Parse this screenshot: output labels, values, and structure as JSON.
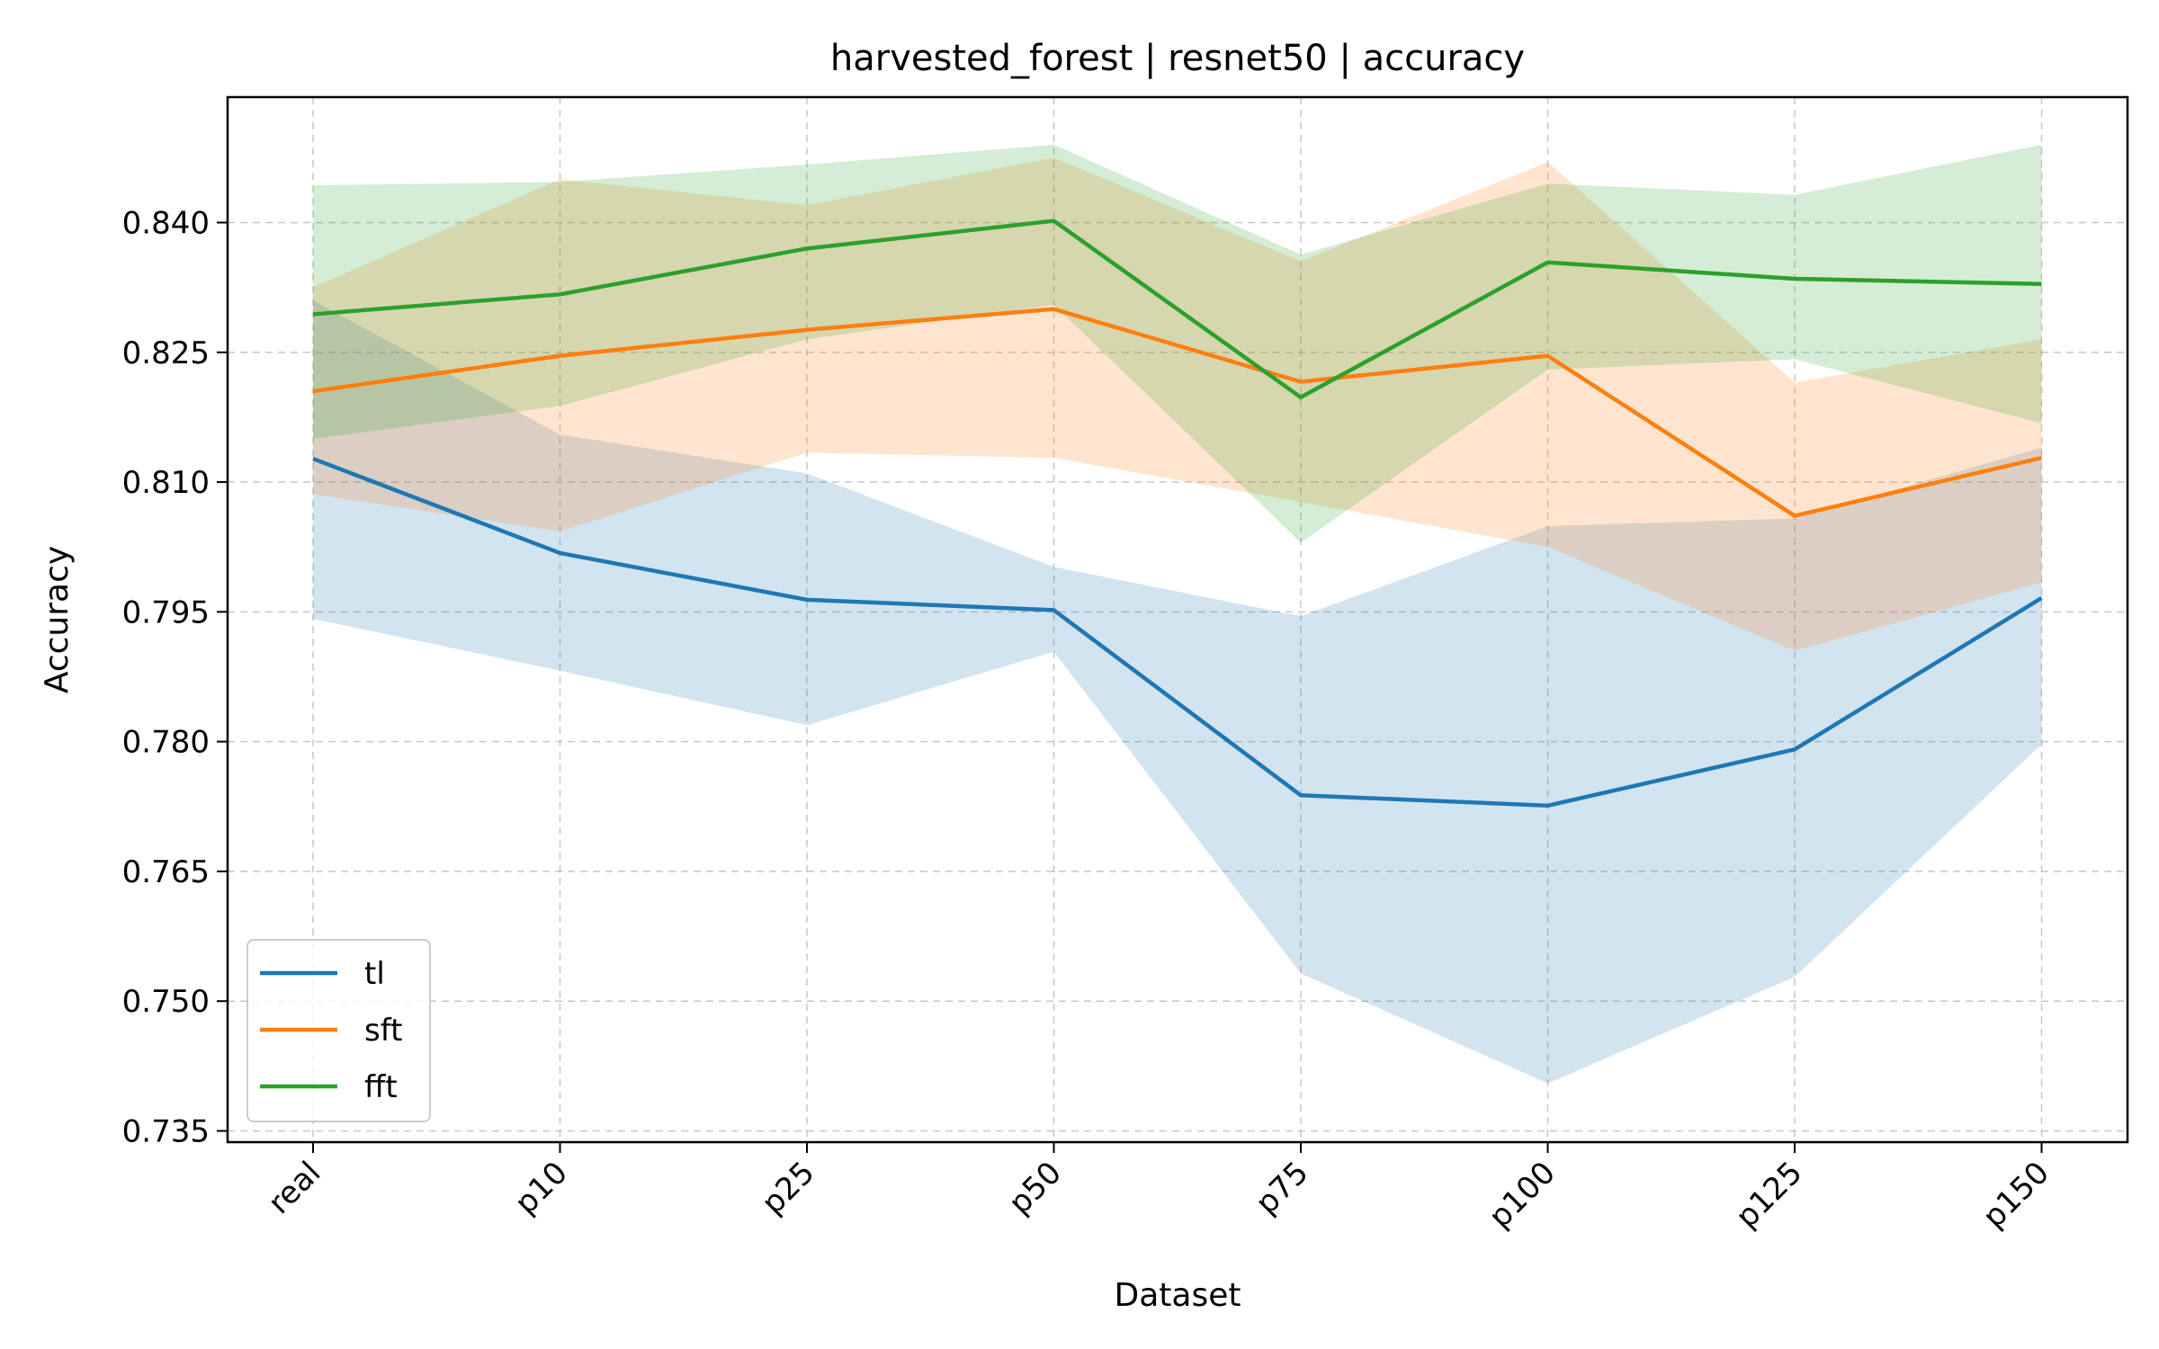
{
  "chart_data": {
    "type": "line",
    "title": "harvested_forest | resnet50 | accuracy",
    "xlabel": "Dataset",
    "ylabel": "Accuracy",
    "categories": [
      "real",
      "p10",
      "p25",
      "p50",
      "p75",
      "p100",
      "p125",
      "p150"
    ],
    "ylim": [
      0.7337,
      0.8545
    ],
    "yticks": [
      0.735,
      0.75,
      0.765,
      0.78,
      0.795,
      0.81,
      0.825,
      0.84
    ],
    "ytick_labels": [
      "0.735",
      "0.750",
      "0.765",
      "0.780",
      "0.795",
      "0.810",
      "0.825",
      "0.840"
    ],
    "grid": true,
    "legend_position": "bottom-left",
    "series": [
      {
        "name": "tl",
        "color": "#1f77b4",
        "values": [
          0.8127,
          0.8018,
          0.7964,
          0.7952,
          0.7738,
          0.7726,
          0.7791,
          0.7966
        ],
        "lower": [
          0.7942,
          0.7882,
          0.7819,
          0.7904,
          0.7532,
          0.7405,
          0.7528,
          0.7797
        ],
        "upper": [
          0.831,
          0.8155,
          0.811,
          0.8002,
          0.7945,
          0.8049,
          0.8058,
          0.814
        ]
      },
      {
        "name": "sft",
        "color": "#ff7f0e",
        "values": [
          0.8205,
          0.8246,
          0.8276,
          0.83,
          0.8216,
          0.8246,
          0.8061,
          0.8128
        ],
        "lower": [
          0.8086,
          0.8043,
          0.8134,
          0.8128,
          0.8077,
          0.8025,
          0.7905,
          0.7984
        ],
        "upper": [
          0.8325,
          0.845,
          0.842,
          0.8475,
          0.8355,
          0.847,
          0.8215,
          0.8265
        ]
      },
      {
        "name": "fft",
        "color": "#2ca02c",
        "values": [
          0.8294,
          0.8317,
          0.837,
          0.8402,
          0.8198,
          0.8354,
          0.8335,
          0.8329
        ],
        "lower": [
          0.815,
          0.8188,
          0.8265,
          0.8305,
          0.803,
          0.823,
          0.8242,
          0.8168
        ],
        "upper": [
          0.8443,
          0.8447,
          0.8467,
          0.849,
          0.8363,
          0.8445,
          0.8432,
          0.849
        ]
      }
    ]
  }
}
